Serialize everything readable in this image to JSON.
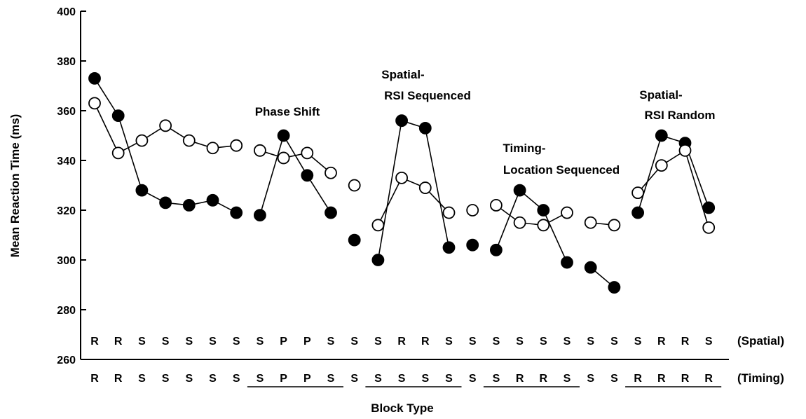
{
  "chart_data": {
    "type": "line",
    "xlabel": "Block Type",
    "ylabel": "Mean Reaction Time (ms)",
    "ylim": [
      260,
      400
    ],
    "yticks": [
      260,
      280,
      300,
      320,
      340,
      360,
      380,
      400
    ],
    "grid": false,
    "legend": "none",
    "blocks": [
      1,
      2,
      3,
      4,
      5,
      6,
      7,
      8,
      9,
      10,
      11,
      12,
      13,
      14,
      15,
      16,
      17,
      18,
      19,
      20,
      21,
      22,
      23,
      24,
      25,
      26,
      27
    ],
    "spatial_row": {
      "label": "(Spatial)",
      "letters": [
        "R",
        "R",
        "S",
        "S",
        "S",
        "S",
        "S",
        "S",
        "P",
        "P",
        "S",
        "S",
        "S",
        "R",
        "R",
        "S",
        "S",
        "S",
        "S",
        "S",
        "S",
        "S",
        "S",
        "S",
        "R",
        "R",
        "S"
      ]
    },
    "timing_row": {
      "label": "(Timing)",
      "letters": [
        "R",
        "R",
        "S",
        "S",
        "S",
        "S",
        "S",
        "S",
        "P",
        "P",
        "S",
        "S",
        "S",
        "S",
        "S",
        "S",
        "S",
        "S",
        "R",
        "R",
        "S",
        "S",
        "S",
        "R",
        "R",
        "R",
        "R"
      ],
      "underlined_groups": [
        [
          8,
          11
        ],
        [
          13,
          16
        ],
        [
          18,
          21
        ],
        [
          24,
          27
        ]
      ]
    },
    "series": [
      {
        "marker": "filled-circle",
        "color": "#000000",
        "segments": [
          {
            "x": [
              1,
              2,
              3,
              4,
              5,
              6,
              7
            ],
            "y": [
              373,
              358,
              328,
              323,
              322,
              324,
              319
            ]
          },
          {
            "x": [
              8,
              9,
              10,
              11
            ],
            "y": [
              318,
              350,
              334,
              319
            ]
          },
          {
            "x": [
              12
            ],
            "y": [
              308
            ]
          },
          {
            "x": [
              13,
              14,
              15,
              16
            ],
            "y": [
              300,
              356,
              353,
              305
            ]
          },
          {
            "x": [
              17
            ],
            "y": [
              306
            ]
          },
          {
            "x": [
              18,
              19,
              20,
              21
            ],
            "y": [
              304,
              328,
              320,
              299
            ]
          },
          {
            "x": [
              22,
              23
            ],
            "y": [
              297,
              289
            ]
          },
          {
            "x": [
              24,
              25,
              26,
              27
            ],
            "y": [
              319,
              350,
              347,
              321
            ]
          }
        ]
      },
      {
        "marker": "open-circle",
        "color": "#000000",
        "segments": [
          {
            "x": [
              1,
              2,
              3,
              4,
              5,
              6,
              7
            ],
            "y": [
              363,
              343,
              348,
              354,
              348,
              345,
              346
            ]
          },
          {
            "x": [
              8,
              9,
              10,
              11
            ],
            "y": [
              344,
              341,
              343,
              335
            ]
          },
          {
            "x": [
              12
            ],
            "y": [
              330
            ]
          },
          {
            "x": [
              13,
              14,
              15,
              16
            ],
            "y": [
              314,
              333,
              329,
              319
            ]
          },
          {
            "x": [
              17
            ],
            "y": [
              320
            ]
          },
          {
            "x": [
              18,
              19,
              20,
              21
            ],
            "y": [
              322,
              315,
              314,
              319
            ]
          },
          {
            "x": [
              22,
              23
            ],
            "y": [
              315,
              314
            ]
          },
          {
            "x": [
              24,
              25,
              26,
              27
            ],
            "y": [
              327,
              338,
              344,
              313
            ]
          }
        ]
      }
    ],
    "annotations": [
      {
        "id": "phase-shift",
        "lines": [
          "Phase Shift"
        ]
      },
      {
        "id": "spatial-rsi-sequenced",
        "lines": [
          "Spatial-",
          "RSI Sequenced"
        ]
      },
      {
        "id": "timing-location-sequenced",
        "lines": [
          "Timing-",
          "Location Sequenced"
        ]
      },
      {
        "id": "spatial-rsi-random",
        "lines": [
          "Spatial-",
          "RSI Random"
        ]
      }
    ]
  }
}
